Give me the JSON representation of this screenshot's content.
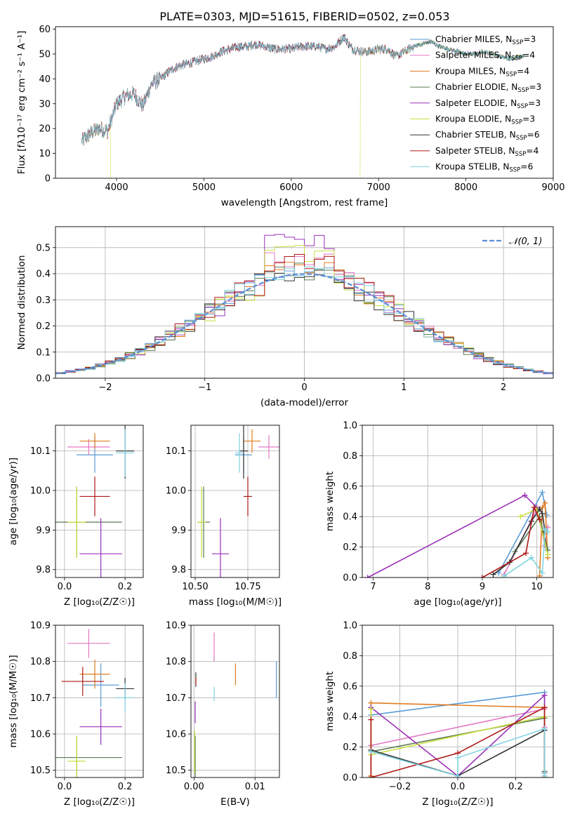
{
  "figure": {
    "title": "PLATE=0303, MJD=51615, FIBERID=0502, z=0.053"
  },
  "colors": {
    "Chabrier MILES": "#5b9bd5",
    "Salpeter MILES": "#e377c2",
    "Kroupa MILES": "#e07b22",
    "Chabrier ELODIE": "#5a7a50",
    "Salpeter ELODIE": "#9b30b8",
    "Kroupa ELODIE": "#c8e040",
    "Chabrier STELIB": "#333333",
    "Salpeter STELIB": "#b01818",
    "Kroupa STELIB": "#7fd3e0",
    "normal": "#5b8fd6"
  },
  "chart_data": [
    {
      "id": "spectrum",
      "type": "line",
      "xlabel": "wavelength [Angstrom, rest frame]",
      "ylabel": "Flux [fλ10⁻¹⁷ erg cm⁻² s⁻¹ A⁻¹]",
      "xlim": [
        3300,
        9000
      ],
      "ylim": [
        0,
        61
      ],
      "xticks": [
        4000,
        5000,
        6000,
        7000,
        8000,
        9000
      ],
      "yticks": [
        0,
        10,
        20,
        30,
        40,
        50,
        60
      ],
      "grid": false,
      "legend_position": "right",
      "legend": [
        "Chabrier MILES, N_SSP=3",
        "Salpeter MILES, N_SSP=4",
        "Kroupa MILES, N_SSP=4",
        "Chabrier ELODIE, N_SSP=3",
        "Salpeter ELODIE, N_SSP=3",
        "Kroupa ELODIE, N_SSP=3",
        "Chabrier STELIB, N_SSP=6",
        "Salpeter STELIB, N_SSP=4",
        "Kroupa STELIB, N_SSP=6"
      ],
      "legend_labels": [
        {
          "pre": "Chabrier MILES, N",
          "sub": "SSP",
          "post": "=3"
        },
        {
          "pre": "Salpeter MILES, N",
          "sub": "SSP",
          "post": "=4"
        },
        {
          "pre": "Kroupa MILES, N",
          "sub": "SSP",
          "post": "=4"
        },
        {
          "pre": "Chabrier ELODIE, N",
          "sub": "SSP",
          "post": "=3"
        },
        {
          "pre": "Salpeter ELODIE, N",
          "sub": "SSP",
          "post": "=3"
        },
        {
          "pre": "Kroupa ELODIE, N",
          "sub": "SSP",
          "post": "=3"
        },
        {
          "pre": "Chabrier STELIB, N",
          "sub": "SSP",
          "post": "=6"
        },
        {
          "pre": "Salpeter STELIB, N",
          "sub": "SSP",
          "post": "=4"
        },
        {
          "pre": "Kroupa STELIB, N",
          "sub": "SSP",
          "post": "=6"
        }
      ],
      "continuum": {
        "x": [
          3600,
          3700,
          3800,
          3900,
          4000,
          4100,
          4200,
          4300,
          4400,
          4500,
          4600,
          4700,
          4800,
          4900,
          5000,
          5100,
          5200,
          5300,
          5400,
          5500,
          5600,
          5700,
          5800,
          5900,
          6000,
          6100,
          6200,
          6300,
          6400,
          6500,
          6600,
          6700,
          6800,
          6900,
          7000,
          7100,
          7200,
          7300,
          7400,
          7500,
          7600,
          7700,
          7800,
          7900,
          8000,
          8100,
          8200,
          8300,
          8400,
          8500,
          8600
        ],
        "y": [
          15,
          18,
          20,
          19,
          30,
          33,
          34,
          29,
          38,
          40,
          43,
          45,
          46,
          47,
          48,
          49,
          51,
          52,
          53,
          53,
          54,
          53,
          52,
          52,
          52,
          53,
          53,
          53,
          52,
          53,
          57,
          52,
          51,
          51,
          52,
          52,
          49,
          51,
          53,
          54,
          55,
          53,
          52,
          51,
          50,
          50,
          51,
          50,
          49,
          48,
          49
        ]
      },
      "dropouts": [
        {
          "model": "Kroupa ELODIE",
          "x_range": [
            3930,
            6790
          ]
        },
        {
          "model": "Salpeter STELIB",
          "x_range": [
            7410,
            9000
          ]
        },
        {
          "model": "Kroupa MILES",
          "x_range": [
            7410,
            9000
          ]
        }
      ]
    },
    {
      "id": "residuals",
      "type": "histogram",
      "xlabel": "(data-model)/error",
      "ylabel": "Normed distribution",
      "xlim": [
        -2.5,
        2.5
      ],
      "ylim": [
        0,
        0.58
      ],
      "xticks": [
        -2,
        -1,
        0,
        1,
        2
      ],
      "yticks": [
        0,
        0.1,
        0.2,
        0.3,
        0.4,
        0.5
      ],
      "grid": true,
      "legend_position": "top-right",
      "legend": [
        "𝒩(0, 1)"
      ],
      "bins": {
        "start": -2.5,
        "width": 0.1,
        "count": 50
      },
      "series_peak": [
        0.42,
        0.49,
        0.45,
        0.44,
        0.56,
        0.52,
        0.4,
        0.48,
        0.43
      ],
      "normal": {
        "mean": 0,
        "std": 1
      }
    },
    {
      "id": "age-vs-z",
      "type": "scatter",
      "xlabel": "Z [log₁₀(Z/Z☉)]",
      "ylabel": "age  [log₁₀(age/yr)]",
      "xlim": [
        -0.03,
        0.26
      ],
      "ylim": [
        9.78,
        10.165
      ],
      "xticks": [
        0.0,
        0.2
      ],
      "yticks": [
        9.8,
        9.9,
        10.0,
        10.1
      ],
      "grid": true,
      "points": [
        {
          "model": "Chabrier MILES",
          "x": 0.1,
          "y": 10.09,
          "xerr": 0.06,
          "yerr": 0.045
        },
        {
          "model": "Salpeter MILES",
          "x": 0.08,
          "y": 10.11,
          "xerr": 0.07,
          "yerr": 0.02
        },
        {
          "model": "Kroupa MILES",
          "x": 0.1,
          "y": 10.125,
          "xerr": 0.05,
          "yerr": 0.02
        },
        {
          "model": "Chabrier ELODIE",
          "x": 0.04,
          "y": 9.92,
          "xerr": 0.15,
          "yerr": 0.09
        },
        {
          "model": "Salpeter ELODIE",
          "x": 0.12,
          "y": 9.84,
          "xerr": 0.07,
          "yerr": 0.09
        },
        {
          "model": "Kroupa ELODIE",
          "x": 0.04,
          "y": 9.92,
          "xerr": 0.03,
          "yerr": 0.09
        },
        {
          "model": "Chabrier STELIB",
          "x": 0.2,
          "y": 10.1,
          "xerr": 0.03,
          "yerr": 0.07
        },
        {
          "model": "Salpeter STELIB",
          "x": 0.1,
          "y": 9.985,
          "xerr": 0.05,
          "yerr": 0.05
        },
        {
          "model": "Kroupa STELIB",
          "x": 0.2,
          "y": 10.095,
          "xerr": 0.03,
          "yerr": 0.06
        }
      ]
    },
    {
      "id": "age-vs-mass",
      "type": "scatter",
      "xlabel": "mass [log₁₀(M/M☉)]",
      "ylabel": "",
      "xlim": [
        10.48,
        10.9
      ],
      "ylim": [
        9.78,
        10.165
      ],
      "xticks": [
        10.5,
        10.75
      ],
      "yticks": [
        9.8,
        9.9,
        10.0,
        10.1
      ],
      "grid": true,
      "points": [
        {
          "model": "Chabrier MILES",
          "x": 10.73,
          "y": 10.09,
          "xerr": 0.04,
          "yerr": 0.045
        },
        {
          "model": "Salpeter MILES",
          "x": 10.85,
          "y": 10.11,
          "xerr": 0.05,
          "yerr": 0.03
        },
        {
          "model": "Kroupa MILES",
          "x": 10.77,
          "y": 10.125,
          "xerr": 0.04,
          "yerr": 0.03
        },
        {
          "model": "Chabrier ELODIE",
          "x": 10.54,
          "y": 9.92,
          "xerr": 0.03,
          "yerr": 0.09
        },
        {
          "model": "Salpeter ELODIE",
          "x": 10.62,
          "y": 9.84,
          "xerr": 0.04,
          "yerr": 0.09
        },
        {
          "model": "Kroupa ELODIE",
          "x": 10.53,
          "y": 9.92,
          "xerr": 0.02,
          "yerr": 0.09
        },
        {
          "model": "Chabrier STELIB",
          "x": 10.73,
          "y": 10.1,
          "xerr": 0.02,
          "yerr": 0.07
        },
        {
          "model": "Salpeter STELIB",
          "x": 10.75,
          "y": 9.985,
          "xerr": 0.02,
          "yerr": 0.05
        },
        {
          "model": "Kroupa STELIB",
          "x": 10.71,
          "y": 10.095,
          "xerr": 0.02,
          "yerr": 0.05
        }
      ]
    },
    {
      "id": "weight-vs-age",
      "type": "line",
      "xlabel": "age  [log₁₀(age/yr)]",
      "ylabel": "mass weight",
      "xlim": [
        6.8,
        10.3
      ],
      "ylim": [
        0,
        1.0
      ],
      "xticks": [
        7,
        8,
        9,
        10
      ],
      "yticks": [
        0.0,
        0.2,
        0.4,
        0.6,
        0.8,
        1.0
      ],
      "grid": true,
      "series": [
        {
          "name": "Chabrier MILES",
          "x": [
            9.3,
            10.1,
            10.18
          ],
          "y": [
            0.03,
            0.56,
            0.41
          ]
        },
        {
          "name": "Salpeter MILES",
          "x": [
            9.4,
            10.0,
            10.15,
            10.2
          ],
          "y": [
            0.02,
            0.45,
            0.21,
            0.33
          ]
        },
        {
          "name": "Kroupa MILES",
          "x": [
            10.05,
            10.1,
            10.15,
            10.2
          ],
          "y": [
            0.01,
            0.46,
            0.49,
            0.13
          ]
        },
        {
          "name": "Chabrier ELODIE",
          "x": [
            9.6,
            10.05,
            10.2
          ],
          "y": [
            0.17,
            0.4,
            0.18
          ]
        },
        {
          "name": "Salpeter ELODIE",
          "x": [
            6.9,
            9.78,
            10.0
          ],
          "y": [
            0.0,
            0.54,
            0.46
          ]
        },
        {
          "name": "Kroupa ELODIE",
          "x": [
            9.7,
            10.0,
            10.2
          ],
          "y": [
            0.4,
            0.45,
            0.15
          ]
        },
        {
          "name": "Chabrier STELIB",
          "x": [
            9.2,
            9.5,
            9.9,
            10.05,
            10.1,
            10.15
          ],
          "y": [
            0.02,
            0.1,
            0.37,
            0.45,
            0.42,
            0.3
          ]
        },
        {
          "name": "Salpeter STELIB",
          "x": [
            9.0,
            9.8,
            9.95,
            10.05
          ],
          "y": [
            0.0,
            0.16,
            0.46,
            0.38
          ]
        },
        {
          "name": "Kroupa STELIB",
          "x": [
            9.4,
            9.9,
            10.1,
            10.15,
            10.2
          ],
          "y": [
            0.01,
            0.13,
            0.03,
            0.32,
            0.3
          ]
        }
      ]
    },
    {
      "id": "mass-vs-z",
      "type": "scatter",
      "xlabel": "Z [log₁₀(Z/Z☉)]",
      "ylabel": "mass [log₁₀(M/M☉)]",
      "xlim": [
        -0.03,
        0.26
      ],
      "ylim": [
        10.48,
        10.9
      ],
      "xticks": [
        0.0,
        0.2
      ],
      "yticks": [
        10.5,
        10.6,
        10.7,
        10.8,
        10.9
      ],
      "grid": true,
      "points": [
        {
          "model": "Chabrier MILES",
          "x": 0.12,
          "y": 10.735,
          "xerr": 0.06,
          "yerr": 0.06
        },
        {
          "model": "Salpeter MILES",
          "x": 0.08,
          "y": 10.85,
          "xerr": 0.07,
          "yerr": 0.04
        },
        {
          "model": "Kroupa MILES",
          "x": 0.1,
          "y": 10.765,
          "xerr": 0.05,
          "yerr": 0.04
        },
        {
          "model": "Chabrier ELODIE",
          "x": 0.04,
          "y": 10.535,
          "xerr": 0.15,
          "yerr": 0.06
        },
        {
          "model": "Salpeter ELODIE",
          "x": 0.12,
          "y": 10.62,
          "xerr": 0.07,
          "yerr": 0.05
        },
        {
          "model": "Kroupa ELODIE",
          "x": 0.04,
          "y": 10.525,
          "xerr": 0.03,
          "yerr": 0.07
        },
        {
          "model": "Chabrier STELIB",
          "x": 0.2,
          "y": 10.725,
          "xerr": 0.03,
          "yerr": 0.03
        },
        {
          "model": "Salpeter STELIB",
          "x": 0.06,
          "y": 10.745,
          "xerr": 0.07,
          "yerr": 0.04
        },
        {
          "model": "Kroupa STELIB",
          "x": 0.2,
          "y": 10.7,
          "xerr": 0.03,
          "yerr": 0.04
        }
      ]
    },
    {
      "id": "mass-vs-ebv",
      "type": "scatter",
      "xlabel": "E(B-V)",
      "ylabel": "",
      "xlim": [
        -0.0005,
        0.014
      ],
      "ylim": [
        10.48,
        10.9
      ],
      "xticks": [
        0.0,
        0.01
      ],
      "yticks": [
        10.5,
        10.6,
        10.7,
        10.8,
        10.9
      ],
      "grid": true,
      "points": [
        {
          "model": "Chabrier MILES",
          "x": 0.0135,
          "y": 10.75,
          "xerr": 0,
          "yerr": 0.05
        },
        {
          "model": "Salpeter MILES",
          "x": 0.0033,
          "y": 10.84,
          "xerr": 0,
          "yerr": 0.04
        },
        {
          "model": "Kroupa MILES",
          "x": 0.0068,
          "y": 10.765,
          "xerr": 0,
          "yerr": 0.03
        },
        {
          "model": "Chabrier ELODIE",
          "x": 0.0002,
          "y": 10.535,
          "xerr": 0,
          "yerr": 0.06
        },
        {
          "model": "Salpeter ELODIE",
          "x": 0.0002,
          "y": 10.66,
          "xerr": 0,
          "yerr": 0.03
        },
        {
          "model": "Kroupa ELODIE",
          "x": 0.0001,
          "y": 10.55,
          "xerr": 0,
          "yerr": 0.06
        },
        {
          "model": "Chabrier STELIB",
          "x": 0.0003,
          "y": 10.75,
          "xerr": 0,
          "yerr": 0.02
        },
        {
          "model": "Salpeter STELIB",
          "x": 0.0003,
          "y": 10.745,
          "xerr": 0,
          "yerr": 0.01
        },
        {
          "model": "Kroupa STELIB",
          "x": 0.0033,
          "y": 10.71,
          "xerr": 0,
          "yerr": 0.02
        }
      ]
    },
    {
      "id": "weight-vs-z",
      "type": "line",
      "xlabel": "Z [log₁₀(Z/Z☉)]",
      "ylabel": "mass weight",
      "xlim": [
        -0.33,
        0.33
      ],
      "ylim": [
        0,
        1.0
      ],
      "xticks": [
        -0.2,
        0.0,
        0.2
      ],
      "yticks": [
        0.0,
        0.2,
        0.4,
        0.6,
        0.8,
        1.0
      ],
      "grid": true,
      "series": [
        {
          "name": "Chabrier MILES",
          "x": [
            -0.3,
            0.3,
            0.3,
            0.3
          ],
          "y": [
            0.41,
            0.56,
            0.03,
            0.03
          ]
        },
        {
          "name": "Salpeter MILES",
          "x": [
            -0.3,
            0.3,
            0.3
          ],
          "y": [
            0.21,
            0.45,
            0.33
          ]
        },
        {
          "name": "Kroupa MILES",
          "x": [
            -0.3,
            -0.3,
            0.3,
            0.3
          ],
          "y": [
            0.01,
            0.49,
            0.46,
            0.01
          ]
        },
        {
          "name": "Chabrier ELODIE",
          "x": [
            -0.3,
            0.3,
            0.3
          ],
          "y": [
            0.17,
            0.39,
            0.04
          ]
        },
        {
          "name": "Salpeter ELODIE",
          "x": [
            -0.3,
            0.0,
            0.3,
            0.3
          ],
          "y": [
            0.46,
            0.01,
            0.54,
            0.46
          ]
        },
        {
          "name": "Kroupa ELODIE",
          "x": [
            -0.3,
            -0.3,
            0.3
          ],
          "y": [
            0.45,
            0.15,
            0.4
          ]
        },
        {
          "name": "Chabrier STELIB",
          "x": [
            -0.3,
            0.0,
            0.3
          ],
          "y": [
            0.18,
            0.01,
            0.31
          ]
        },
        {
          "name": "Salpeter STELIB",
          "x": [
            -0.3,
            -0.3,
            0.0,
            0.3,
            0.3
          ],
          "y": [
            0.38,
            0.0,
            0.16,
            0.46,
            0.0
          ]
        },
        {
          "name": "Kroupa STELIB",
          "x": [
            -0.3,
            0.0,
            0.0,
            0.3,
            0.3
          ],
          "y": [
            0.17,
            0.01,
            0.13,
            0.32,
            0.01
          ]
        }
      ]
    }
  ]
}
